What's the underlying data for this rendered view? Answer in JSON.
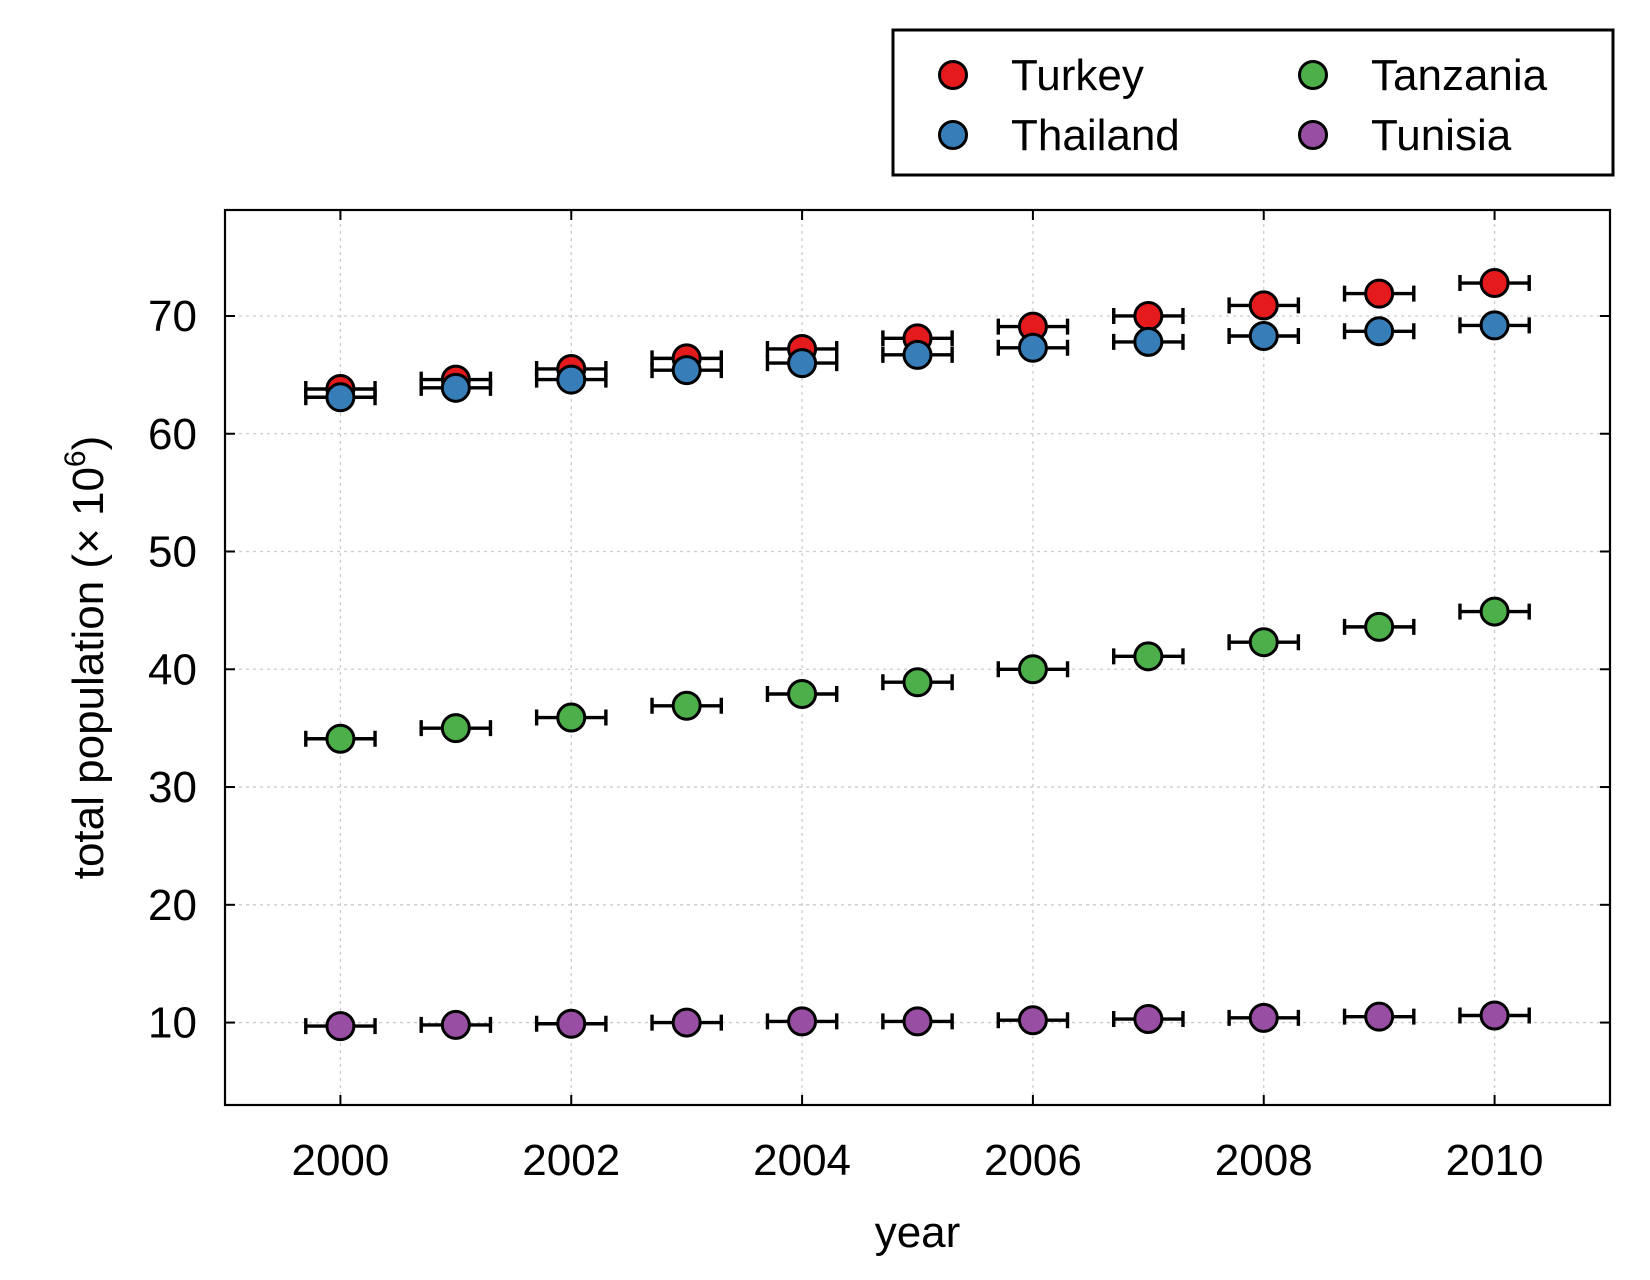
{
  "chart_data": {
    "type": "scatter",
    "title": "",
    "xlabel": "year",
    "ylabel": "total population (× 10",
    "ylabel_exponent": "6",
    "ylabel_close": ")",
    "xlim": [
      1999,
      2011
    ],
    "ylim": [
      3,
      79
    ],
    "x_ticks": [
      2000,
      2002,
      2004,
      2006,
      2008,
      2010
    ],
    "y_ticks": [
      10,
      20,
      30,
      40,
      50,
      60,
      70
    ],
    "grid": true,
    "legend_position": "above-top-right",
    "legend_columns": 2,
    "x_error": 0.3,
    "x": [
      2000,
      2001,
      2002,
      2003,
      2004,
      2005,
      2006,
      2007,
      2008,
      2009,
      2010
    ],
    "series": [
      {
        "name": "Turkey",
        "color": "#e41a1c",
        "values": [
          63.8,
          64.6,
          65.5,
          66.4,
          67.2,
          68.1,
          69.1,
          70.0,
          70.9,
          71.9,
          72.8
        ]
      },
      {
        "name": "Thailand",
        "color": "#377eb8",
        "values": [
          63.1,
          63.9,
          64.6,
          65.4,
          66.0,
          66.7,
          67.3,
          67.8,
          68.3,
          68.7,
          69.2
        ]
      },
      {
        "name": "Tanzania",
        "color": "#4daf4a",
        "values": [
          34.1,
          35.0,
          35.9,
          36.9,
          37.9,
          38.9,
          40.0,
          41.1,
          42.3,
          43.6,
          44.9
        ]
      },
      {
        "name": "Tunisia",
        "color": "#984ea3",
        "values": [
          9.7,
          9.8,
          9.9,
          10.0,
          10.1,
          10.1,
          10.2,
          10.3,
          10.4,
          10.5,
          10.6
        ]
      }
    ]
  }
}
